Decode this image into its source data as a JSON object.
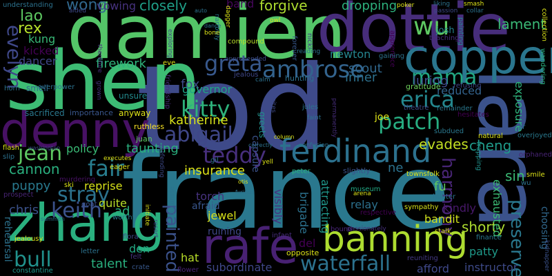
{
  "words": [
    {
      "text": "tod",
      "color": "#3e4a89"
    },
    {
      "text": "france",
      "color": "#2a788e"
    },
    {
      "text": "lara",
      "color": "#3b528b"
    },
    {
      "text": "shen",
      "color": "#3dbc74"
    },
    {
      "text": "damien",
      "color": "#54c568"
    },
    {
      "text": "dottie",
      "color": "#472d7b"
    },
    {
      "text": "copper",
      "color": "#2a768e"
    },
    {
      "text": "zhang",
      "color": "#2ab07f"
    },
    {
      "text": "denny",
      "color": "#471164"
    },
    {
      "text": "banning",
      "color": "#addc30"
    },
    {
      "text": "rafe",
      "color": "#482173"
    },
    {
      "text": "ferdinand",
      "color": "#2c718e"
    },
    {
      "text": "wu",
      "color": "#5ec962"
    },
    {
      "text": "ambrose",
      "color": "#33638d"
    },
    {
      "text": "greta",
      "color": "#38588c"
    },
    {
      "text": "mama",
      "color": "#22a884"
    },
    {
      "text": "erica",
      "color": "#24878e"
    },
    {
      "text": "kitty",
      "color": "#2eb37c"
    },
    {
      "text": "abigail",
      "color": "#3f4788"
    },
    {
      "text": "patch",
      "color": "#27ad81"
    },
    {
      "text": "teddy",
      "color": "#472f7d"
    },
    {
      "text": "jean",
      "color": "#5ec962"
    },
    {
      "text": "fair",
      "color": "#287d8e"
    },
    {
      "text": "keith",
      "color": "#3b528b"
    },
    {
      "text": "stray",
      "color": "#2c728e"
    },
    {
      "text": "waterfall",
      "color": "#2c728e"
    },
    {
      "text": "painted",
      "color": "#3b528b"
    },
    {
      "text": "bull",
      "color": "#21918c"
    },
    {
      "text": "harmony",
      "color": "#482576"
    },
    {
      "text": "preserve",
      "color": "#2a788e"
    },
    {
      "text": "evelyn",
      "color": "#3f4889"
    },
    {
      "text": "lao",
      "color": "#5ec962"
    },
    {
      "text": "wong",
      "color": "#31688e"
    },
    {
      "text": "closely",
      "color": "#1f9f88"
    },
    {
      "text": "vowing",
      "color": "#46327e"
    },
    {
      "text": "band",
      "color": "#46075a"
    },
    {
      "text": "forgive",
      "color": "#addc30"
    },
    {
      "text": "dropping",
      "color": "#2db27d"
    },
    {
      "text": "lament",
      "color": "#3aba76"
    },
    {
      "text": "rex",
      "color": "#b5de2b"
    },
    {
      "text": "kung",
      "color": "#38b977"
    },
    {
      "text": "kicked",
      "color": "#440154"
    },
    {
      "text": "dancer",
      "color": "#3f4788"
    },
    {
      "text": "firework",
      "color": "#2fb47c"
    },
    {
      "text": "newton",
      "color": "#25848e"
    },
    {
      "text": "scout",
      "color": "#31688e"
    },
    {
      "text": "inner",
      "color": "#2d708e"
    },
    {
      "text": "luring",
      "color": "#3e4a89"
    },
    {
      "text": "reduced",
      "color": "#33638d"
    },
    {
      "text": "exposure",
      "color": "#2eb37c"
    },
    {
      "text": "fox",
      "color": "#3e4c8a"
    },
    {
      "text": "governor",
      "color": "#20a486"
    },
    {
      "text": "katherine",
      "color": "#d8e219"
    },
    {
      "text": "cheng",
      "color": "#1f9a8a"
    },
    {
      "text": "evades",
      "color": "#c2df23"
    },
    {
      "text": "taunting",
      "color": "#2ab07f"
    },
    {
      "text": "policy",
      "color": "#3aba76"
    },
    {
      "text": "cannon",
      "color": "#2ab07f"
    },
    {
      "text": "insurance",
      "color": "#dde318"
    },
    {
      "text": "ne",
      "color": "#2c728e"
    },
    {
      "text": "sin",
      "color": "#3bbb75"
    },
    {
      "text": "fu",
      "color": "#5ec962"
    },
    {
      "text": "puppy",
      "color": "#29798e"
    },
    {
      "text": "reprise",
      "color": "#d8e219"
    },
    {
      "text": "chris",
      "color": "#3b528b"
    },
    {
      "text": "quite",
      "color": "#b8de29"
    },
    {
      "text": "ad",
      "color": "#2ab07f"
    },
    {
      "text": "torch",
      "color": "#46327e"
    },
    {
      "text": "jewel",
      "color": "#d8e219"
    },
    {
      "text": "relay",
      "color": "#2c718e"
    },
    {
      "text": "kindly",
      "color": "#48186a"
    },
    {
      "text": "bandit",
      "color": "#d0e11c"
    },
    {
      "text": "shorty",
      "color": "#addc30"
    },
    {
      "text": "brigade",
      "color": "#2c728e"
    },
    {
      "text": "attracting",
      "color": "#1f978b"
    },
    {
      "text": "visibly",
      "color": "#46327e"
    },
    {
      "text": "afraid",
      "color": "#39568c"
    },
    {
      "text": "ruining",
      "color": "#3f4889"
    },
    {
      "text": "del",
      "color": "#440154"
    },
    {
      "text": "patty",
      "color": "#1f9a8a"
    },
    {
      "text": "talent",
      "color": "#2ab07f"
    },
    {
      "text": "hat",
      "color": "#b8de29"
    },
    {
      "text": "den",
      "color": "#22a884"
    },
    {
      "text": "subordinate",
      "color": "#3f4788"
    },
    {
      "text": "afford",
      "color": "#3f4889"
    },
    {
      "text": "instructor",
      "color": "#3e4a89"
    },
    {
      "text": "exhausted",
      "color": "#3bbb75"
    },
    {
      "text": "choosing",
      "color": "#31688e"
    },
    {
      "text": "rehearsal",
      "color": "#2c728e"
    },
    {
      "text": "capsule",
      "color": "#3b528b"
    },
    {
      "text": "greets",
      "color": "#21918c"
    },
    {
      "text": "joe",
      "color": "#dde318"
    },
    {
      "text": "smell",
      "color": "#31688e"
    },
    {
      "text": "overpower",
      "color": "#2c728e"
    },
    {
      "text": "sacrificed",
      "color": "#2a788e"
    },
    {
      "text": "importance",
      "color": "#39568c"
    },
    {
      "text": "anyway",
      "color": "#dde318"
    },
    {
      "text": "unsure",
      "color": "#238a8d"
    },
    {
      "text": "friendship",
      "color": "#472d7b"
    },
    {
      "text": "ruthless",
      "color": "#fde725"
    },
    {
      "text": "juan",
      "color": "#5ec962"
    },
    {
      "text": "gil",
      "color": "#2c728e"
    },
    {
      "text": "eve",
      "color": "#dde318"
    },
    {
      "text": "apprehended",
      "color": "#3e4c8a"
    },
    {
      "text": "jealous",
      "color": "#3f4788"
    },
    {
      "text": "hunting",
      "color": "#2d708e"
    },
    {
      "text": "calm",
      "color": "#2c718e"
    },
    {
      "text": "compound",
      "color": "#b8de29"
    },
    {
      "text": "nicki",
      "color": "#404387"
    },
    {
      "text": "forever",
      "color": "#38588c"
    },
    {
      "text": "apprentice",
      "color": "#440154"
    },
    {
      "text": "gaining",
      "color": "#2c728e"
    },
    {
      "text": "josh",
      "color": "#25848e"
    },
    {
      "text": "teaching",
      "color": "#472d7b"
    },
    {
      "text": "painting",
      "color": "#25848e"
    },
    {
      "text": "collection",
      "color": "#dde318"
    },
    {
      "text": "wandering",
      "color": "#2ab07f"
    },
    {
      "text": "refusing",
      "color": "#3f4788"
    },
    {
      "text": "gratitude",
      "color": "#6ccd5a"
    },
    {
      "text": "theatre",
      "color": "#3e4a89"
    },
    {
      "text": "remainder",
      "color": "#2a788e"
    },
    {
      "text": "hesitates",
      "color": "#440154"
    },
    {
      "text": "subdued",
      "color": "#2a788e"
    },
    {
      "text": "natural",
      "color": "#dde318"
    },
    {
      "text": "sr",
      "color": "#2c728e"
    },
    {
      "text": "overjoyed",
      "color": "#29798e"
    },
    {
      "text": "orphaned",
      "color": "#482475"
    },
    {
      "text": "trapping",
      "color": "#21918c"
    },
    {
      "text": "smile",
      "color": "#dde318"
    },
    {
      "text": "wu",
      "color": "#2c728e"
    },
    {
      "text": "townsfolk",
      "color": "#dde318"
    },
    {
      "text": "slightly",
      "color": "#3b528b"
    },
    {
      "text": "peter",
      "color": "#2ab07f"
    },
    {
      "text": "museum",
      "color": "#22a884"
    },
    {
      "text": "arena",
      "color": "#dde318"
    },
    {
      "text": "hunter",
      "color": "#2c728e"
    },
    {
      "text": "sympathy",
      "color": "#d8e219"
    },
    {
      "text": "respective",
      "color": "#440154"
    },
    {
      "text": "stalk",
      "color": "#dde318"
    },
    {
      "text": "finance",
      "color": "#2a788e"
    },
    {
      "text": "kidnapper",
      "color": "#3b528b"
    },
    {
      "text": "reuniting",
      "color": "#443983"
    },
    {
      "text": "infant",
      "color": "#472d7b"
    },
    {
      "text": "bound",
      "color": "#482576"
    },
    {
      "text": "passionately",
      "color": "#46327e"
    },
    {
      "text": "opposite",
      "color": "#dde318"
    },
    {
      "text": "flora",
      "color": "#3e4a89"
    },
    {
      "text": "letter",
      "color": "#2c728e"
    },
    {
      "text": "felt",
      "color": "#46327e"
    },
    {
      "text": "crate",
      "color": "#38588c"
    },
    {
      "text": "flower",
      "color": "#482475"
    },
    {
      "text": "constantine",
      "color": "#1f988b"
    },
    {
      "text": "jealousy",
      "color": "#dde318"
    },
    {
      "text": "summon",
      "color": "#2c728e"
    },
    {
      "text": "goat",
      "color": "#3b528b"
    },
    {
      "text": "worthy",
      "color": "#2a788e"
    },
    {
      "text": "ski",
      "color": "#dde318"
    },
    {
      "text": "prospect",
      "color": "#482475"
    },
    {
      "text": "murdering",
      "color": "#471164"
    },
    {
      "text": "eager",
      "color": "#dde318"
    },
    {
      "text": "flash",
      "color": "#dde318"
    },
    {
      "text": "washington",
      "color": "#3e4a89"
    },
    {
      "text": "slip",
      "color": "#2c728e"
    },
    {
      "text": "horn",
      "color": "#2c728e"
    },
    {
      "text": "understanding",
      "color": "#2c728e"
    },
    {
      "text": "aided",
      "color": "#3e4a89"
    },
    {
      "text": "therefore",
      "color": "#472d7b"
    },
    {
      "text": "grown",
      "color": "#46327e"
    },
    {
      "text": "exploring",
      "color": "#3e4a89"
    },
    {
      "text": "auto",
      "color": "#2c728e"
    },
    {
      "text": "narrowly",
      "color": "#2a788e"
    },
    {
      "text": "dagger",
      "color": "#dde318"
    },
    {
      "text": "owl",
      "color": "#dde318"
    },
    {
      "text": "dance",
      "color": "#2c728e"
    },
    {
      "text": "bone",
      "color": "#dde318"
    },
    {
      "text": "poker",
      "color": "#dde318"
    },
    {
      "text": "liking",
      "color": "#2c728e"
    },
    {
      "text": "smash",
      "color": "#dde318"
    },
    {
      "text": "passion",
      "color": "#3e4a89"
    },
    {
      "text": "collar",
      "color": "#2c728e"
    },
    {
      "text": "reading",
      "color": "#2c728e"
    },
    {
      "text": "jules",
      "color": "#2c728e"
    },
    {
      "text": "faint",
      "color": "#2c728e"
    },
    {
      "text": "column",
      "color": "#dde318"
    },
    {
      "text": "confusion",
      "color": "#2c728e"
    },
    {
      "text": "correctly",
      "color": "#2c728e"
    },
    {
      "text": "yell",
      "color": "#dde318"
    },
    {
      "text": "otis",
      "color": "#dde318"
    },
    {
      "text": "furious",
      "color": "#2c728e"
    },
    {
      "text": "initiate",
      "color": "#dde318"
    },
    {
      "text": "resort",
      "color": "#3e4a89"
    },
    {
      "text": "assuming",
      "color": "#2c728e"
    },
    {
      "text": "defending",
      "color": "#3e4a89"
    },
    {
      "text": "executes",
      "color": "#dde318"
    },
    {
      "text": "permanently",
      "color": "#472d7b"
    },
    {
      "text": "writes",
      "color": "#3e4a89"
    }
  ]
}
